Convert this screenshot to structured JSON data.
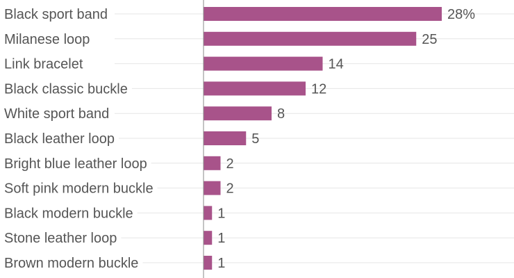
{
  "chart_data": {
    "type": "bar",
    "orientation": "horizontal",
    "categories": [
      "Black sport band",
      "Milanese loop",
      "Link bracelet",
      "Black classic buckle",
      "White sport band",
      "Black leather loop",
      "Bright blue leather loop",
      "Soft pink modern buckle",
      "Black modern buckle",
      "Stone leather loop",
      "Brown modern buckle"
    ],
    "values": [
      28,
      25,
      14,
      12,
      8,
      5,
      2,
      2,
      1,
      1,
      1
    ],
    "value_labels": [
      "28%",
      "25",
      "14",
      "12",
      "8",
      "5",
      "2",
      "2",
      "1",
      "1",
      "1"
    ],
    "unit": "%",
    "xlim": [
      0,
      28
    ],
    "grid": true,
    "bar_color": "#a8538a"
  }
}
